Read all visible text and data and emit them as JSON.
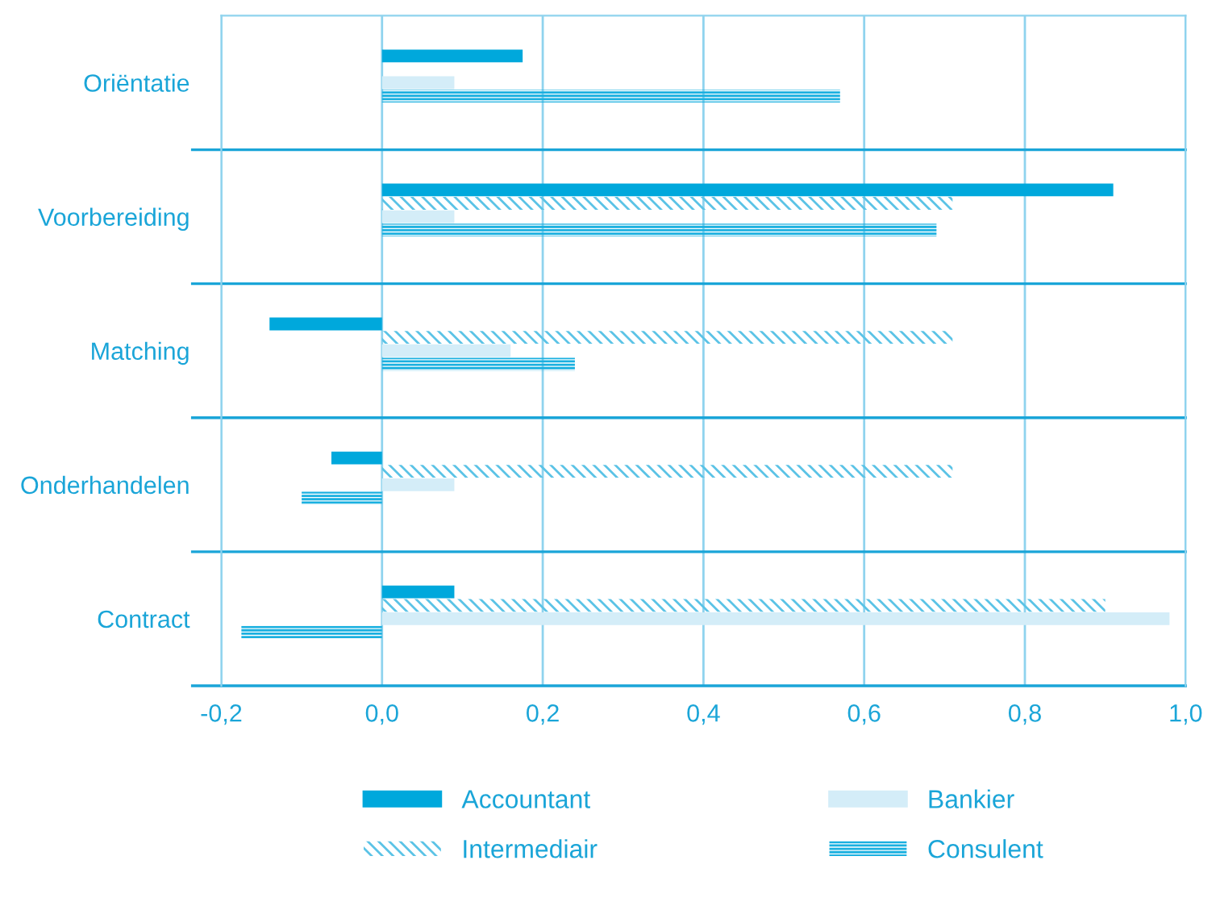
{
  "chart_data": {
    "type": "bar",
    "orientation": "horizontal",
    "categories": [
      "Oriëntatie",
      "Voorbereiding",
      "Matching",
      "Onderhandelen",
      "Contract"
    ],
    "series": [
      {
        "name": "Accountant",
        "color": "#00a8dc",
        "values": [
          0.175,
          0.91,
          -0.14,
          -0.063,
          0.09
        ]
      },
      {
        "name": "Intermediair",
        "color": "#5bc3e6",
        "values": [
          null,
          0.71,
          0.71,
          0.71,
          0.9
        ]
      },
      {
        "name": "Bankier",
        "color": "#d4edf8",
        "values": [
          0.09,
          0.09,
          0.16,
          0.09,
          0.98
        ]
      },
      {
        "name": "Consulent",
        "color": "#1ab0e0",
        "values": [
          0.57,
          0.69,
          0.24,
          -0.1,
          -0.175
        ]
      }
    ],
    "xlim": [
      -0.2,
      1.0
    ],
    "xticks": [
      {
        "value": -0.2,
        "label": "-0,2"
      },
      {
        "value": 0.0,
        "label": "0,0"
      },
      {
        "value": 0.2,
        "label": "0,2"
      },
      {
        "value": 0.4,
        "label": "0,4"
      },
      {
        "value": 0.6,
        "label": "0,6"
      },
      {
        "value": 0.8,
        "label": "0,8"
      },
      {
        "value": 1.0,
        "label": "1,0"
      }
    ],
    "grid": true,
    "legend": "bottom"
  }
}
